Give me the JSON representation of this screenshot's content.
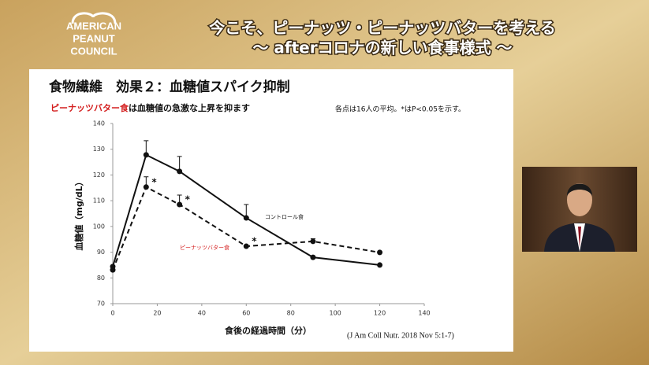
{
  "header": {
    "title": "今こそ、ピーナッツ・ピーナッツバターを考える",
    "subtitle": "〜 afterコロナの新しい食事様式 〜"
  },
  "logo": [
    "AMERICAN",
    "PEANUT",
    "COUNCIL"
  ],
  "slide": {
    "title": "食物繊維　効果２：血糖値スパイク抑制",
    "lead": [
      "ピーナッツバター食",
      "は血糖値の急激な上昇を抑ます"
    ],
    "note": "各点は16人の平均。*はP<0.05を示す。",
    "source": "(J Am Coll Nutr. 2018 Nov 5:1-7)"
  },
  "chart_data": {
    "type": "line",
    "x_label": "食後の経過時間（分）",
    "y_label": "血糖値（mg/dL）",
    "x": [
      0,
      15,
      30,
      60,
      90,
      120
    ],
    "series": [
      {
        "name": "コントロール食",
        "color": "#111111",
        "dashed": false,
        "values": [
          84.4,
          127.8,
          121.4,
          103.3,
          88,
          85
        ],
        "errors": [
          null,
          5.5,
          5.8,
          5.2,
          null,
          null
        ]
      },
      {
        "name": "ピーナッツバター食",
        "color": "#111111",
        "dashed": true,
        "label_color": "#d42020",
        "values": [
          83.1,
          115.3,
          108.5,
          92.3,
          94.2,
          89.9
        ],
        "errors": [
          null,
          4,
          3.7,
          null,
          1,
          null
        ],
        "significance": [
          null,
          "*",
          "*",
          "*",
          null,
          null
        ]
      }
    ],
    "xlim": [
      0,
      140
    ],
    "xticks": [
      0,
      20,
      40,
      60,
      80,
      100,
      120,
      140
    ],
    "ylim": [
      70,
      140
    ],
    "yticks": [
      70,
      80,
      90,
      100,
      110,
      120,
      130,
      140
    ]
  }
}
